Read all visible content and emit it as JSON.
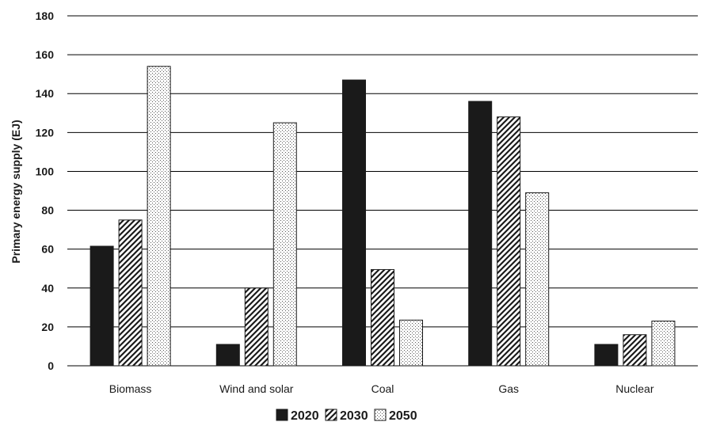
{
  "chart_data": {
    "type": "bar",
    "title": "",
    "xlabel": "",
    "ylabel": "Primary energy supply (EJ)",
    "ylim": [
      0,
      180
    ],
    "yticks": [
      0,
      20,
      40,
      60,
      80,
      100,
      120,
      140,
      160,
      180
    ],
    "grid": true,
    "legend_position": "bottom",
    "categories": [
      "Biomass",
      "Wind and solar",
      "Coal",
      "Gas",
      "Nuclear"
    ],
    "series": [
      {
        "name": "2020",
        "pattern": "solid",
        "color": "#1a1a1a",
        "values": [
          61.5,
          11,
          147,
          136,
          11
        ]
      },
      {
        "name": "2030",
        "pattern": "diagonal-hatch",
        "color": "#1a1a1a",
        "values": [
          75,
          40,
          49.5,
          128,
          16
        ]
      },
      {
        "name": "2050",
        "pattern": "dotted",
        "color": "#1a1a1a",
        "values": [
          154,
          125,
          23.5,
          89,
          23
        ]
      }
    ]
  }
}
